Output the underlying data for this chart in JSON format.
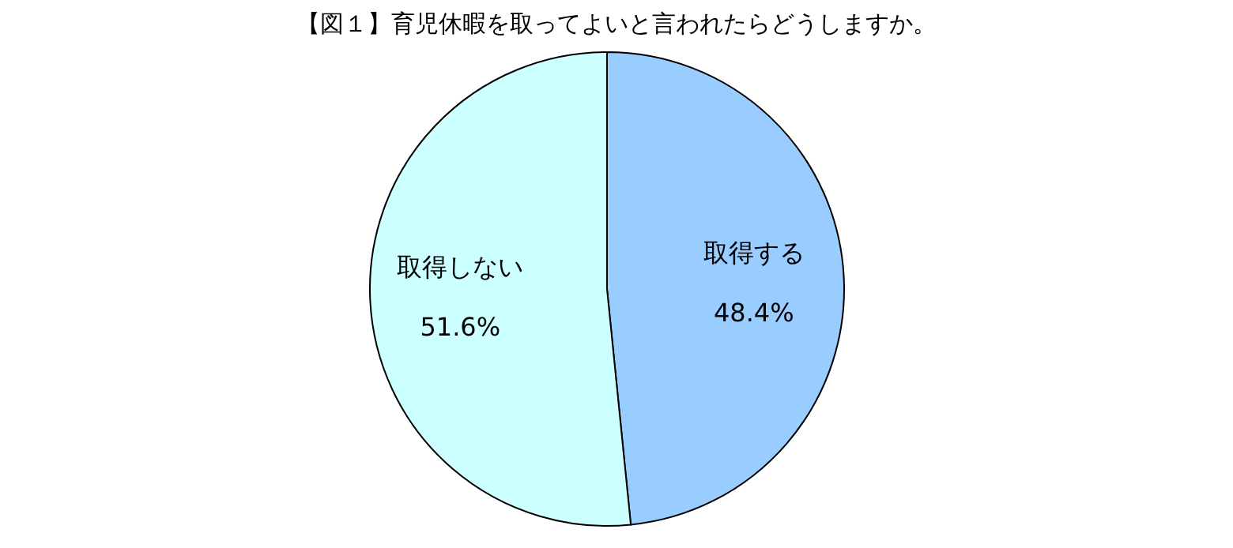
{
  "chart_data": {
    "type": "pie",
    "title": "【図１】育児休暇を取ってよいと言われたらどうしますか。",
    "categories": [
      "取得する",
      "取得しない"
    ],
    "values": [
      48.4,
      51.6
    ],
    "colors": [
      "#99ccff",
      "#ccffff"
    ],
    "value_labels": [
      "48.4%",
      "51.6%"
    ]
  }
}
